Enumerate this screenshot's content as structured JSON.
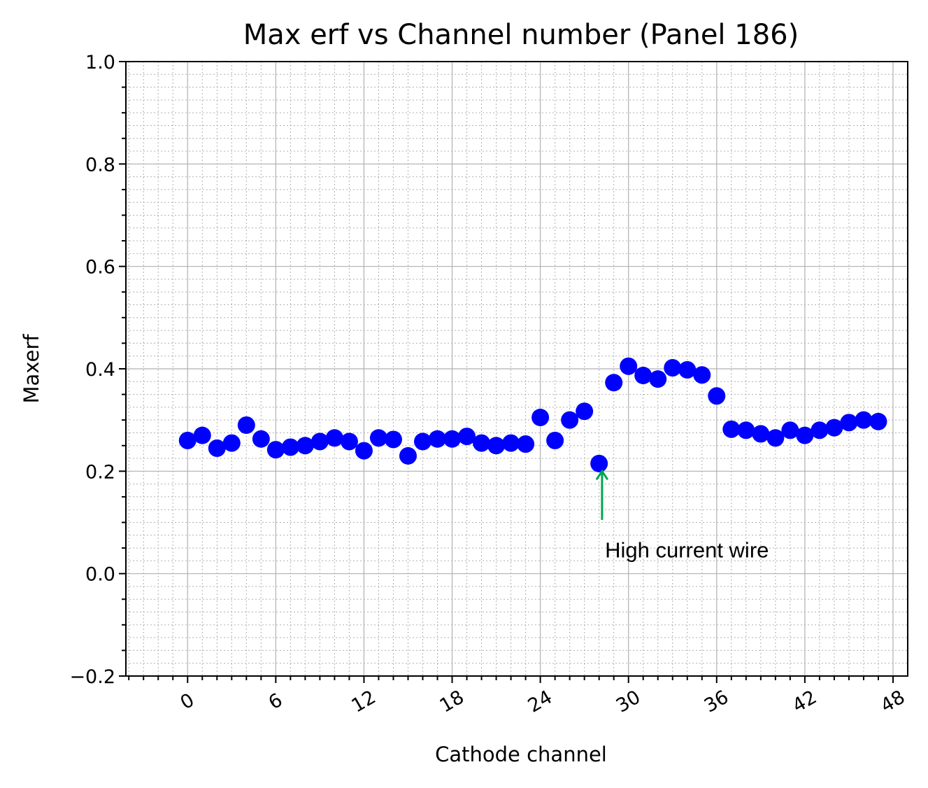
{
  "chart_data": {
    "type": "scatter",
    "title": "Max erf vs Channel number (Panel 186)",
    "xlabel": "Cathode channel",
    "ylabel": "Maxerf",
    "xlim": [
      -4.2,
      49.0
    ],
    "ylim": [
      -0.2,
      1.0
    ],
    "xticks": [
      0,
      6,
      12,
      18,
      24,
      30,
      36,
      42,
      48
    ],
    "xtick_labels": [
      "0",
      "6",
      "12",
      "18",
      "24",
      "30",
      "36",
      "42",
      "48"
    ],
    "yticks": [
      -0.2,
      0.0,
      0.2,
      0.4,
      0.6,
      0.8,
      1.0
    ],
    "ytick_labels": [
      "−0.2",
      "0.0",
      "0.2",
      "0.4",
      "0.6",
      "0.8",
      "1.0"
    ],
    "grid": true,
    "minor_grid": true,
    "marker_color": "#0000ff",
    "series": [
      {
        "x": [
          0,
          1,
          2,
          3,
          4,
          5,
          6,
          7,
          8,
          9,
          10,
          11,
          12,
          13,
          14,
          15,
          16,
          17,
          18,
          19,
          20,
          21,
          22,
          23,
          24,
          25,
          26,
          27,
          28,
          29,
          30,
          31,
          32,
          33,
          34,
          35,
          36,
          37,
          38,
          39,
          40,
          41,
          42,
          43,
          44,
          45,
          46,
          47
        ],
        "y": [
          0.26,
          0.27,
          0.245,
          0.255,
          0.29,
          0.263,
          0.242,
          0.247,
          0.25,
          0.258,
          0.265,
          0.258,
          0.24,
          0.265,
          0.262,
          0.23,
          0.258,
          0.263,
          0.263,
          0.268,
          0.255,
          0.25,
          0.255,
          0.253,
          0.305,
          0.26,
          0.3,
          0.317,
          0.215,
          0.373,
          0.405,
          0.387,
          0.38,
          0.402,
          0.398,
          0.388,
          0.347,
          0.282,
          0.28,
          0.273,
          0.265,
          0.28,
          0.27,
          0.28,
          0.285,
          0.295,
          0.3,
          0.297
        ]
      }
    ],
    "annotation": {
      "text": "High current wire",
      "arrow_color": "#00a550",
      "target_x": 28.2,
      "target_y": 0.2,
      "arrow_tail_y": 0.105,
      "text_x": 28.4,
      "text_y": 0.045
    }
  }
}
